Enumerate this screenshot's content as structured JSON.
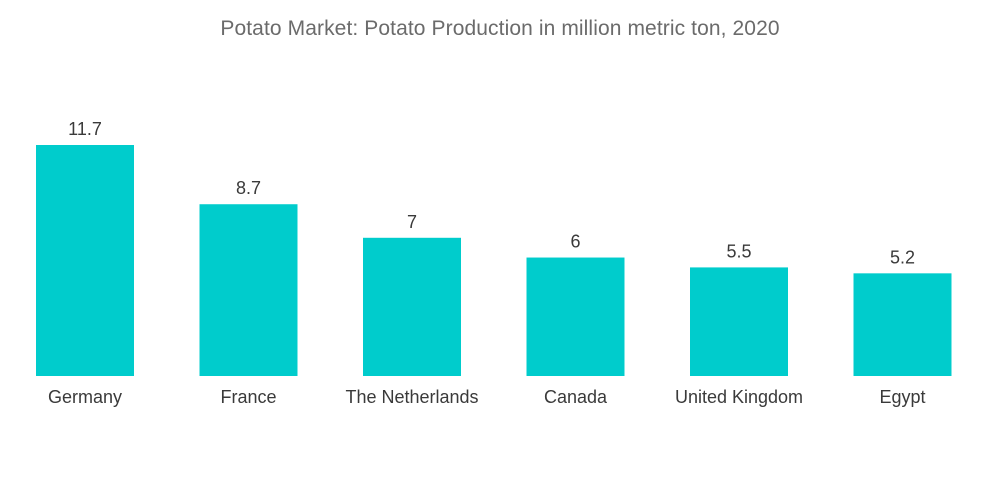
{
  "chart_data": {
    "type": "bar",
    "title": "Potato Market: Potato Production in million metric ton, 2020",
    "categories": [
      "Germany",
      "France",
      "The Netherlands",
      "Canada",
      "United Kingdom",
      "Egypt"
    ],
    "values": [
      11.7,
      8.7,
      7,
      6,
      5.5,
      5.2
    ],
    "value_labels": [
      "11.7",
      "8.7",
      "7",
      "6",
      "5.5",
      "5.2"
    ],
    "xlabel": "",
    "ylabel": "",
    "ylim": [
      0,
      11.7
    ],
    "grid": false,
    "legend": "none",
    "bar_color": "#00cccc"
  }
}
